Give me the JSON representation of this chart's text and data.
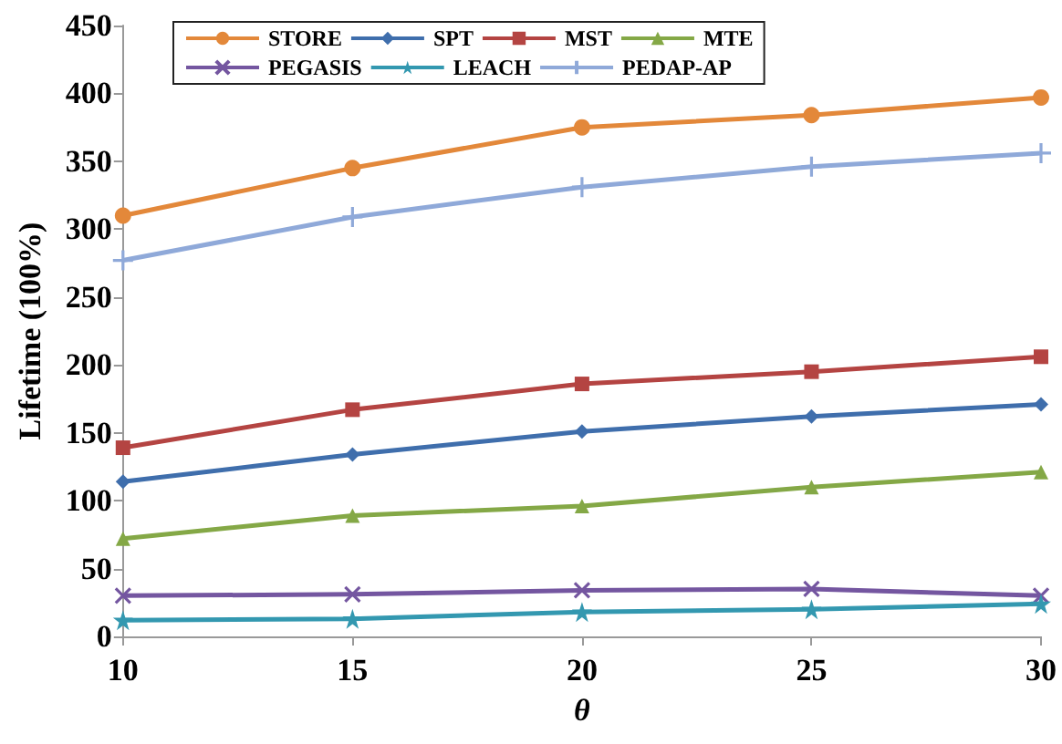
{
  "chart_data": {
    "type": "line",
    "xlabel": "θ",
    "ylabel": "Lifetime (100%)",
    "x": [
      10,
      15,
      20,
      25,
      30
    ],
    "xlim": [
      10,
      30
    ],
    "xticks": [
      10,
      15,
      20,
      25,
      30
    ],
    "ylim": [
      0,
      450
    ],
    "yticks": [
      0,
      50,
      100,
      150,
      200,
      250,
      300,
      350,
      400,
      450
    ],
    "grid": false,
    "legend": "top left",
    "line_style": "solid",
    "series": [
      {
        "name": "STORE",
        "color": "#e3883a",
        "marker": "circle",
        "values": [
          310,
          345,
          375,
          384,
          397
        ]
      },
      {
        "name": "SPT",
        "color": "#3f6eac",
        "marker": "diamond",
        "values": [
          114,
          134,
          151,
          162,
          171
        ]
      },
      {
        "name": "MST",
        "color": "#b44442",
        "marker": "square",
        "values": [
          139,
          167,
          186,
          195,
          206
        ]
      },
      {
        "name": "MTE",
        "color": "#84a846",
        "marker": "triangle",
        "values": [
          72,
          89,
          96,
          110,
          121
        ]
      },
      {
        "name": "PEGASIS",
        "color": "#7456a0",
        "marker": "cross",
        "values": [
          30,
          31,
          34,
          35,
          30
        ]
      },
      {
        "name": "LEACH",
        "color": "#3398b0",
        "marker": "star",
        "values": [
          12,
          13,
          18,
          20,
          24
        ]
      },
      {
        "name": "PEDAP-AP",
        "color": "#8fa9d9",
        "marker": "plus",
        "values": [
          277,
          309,
          331,
          346,
          356
        ]
      }
    ]
  }
}
